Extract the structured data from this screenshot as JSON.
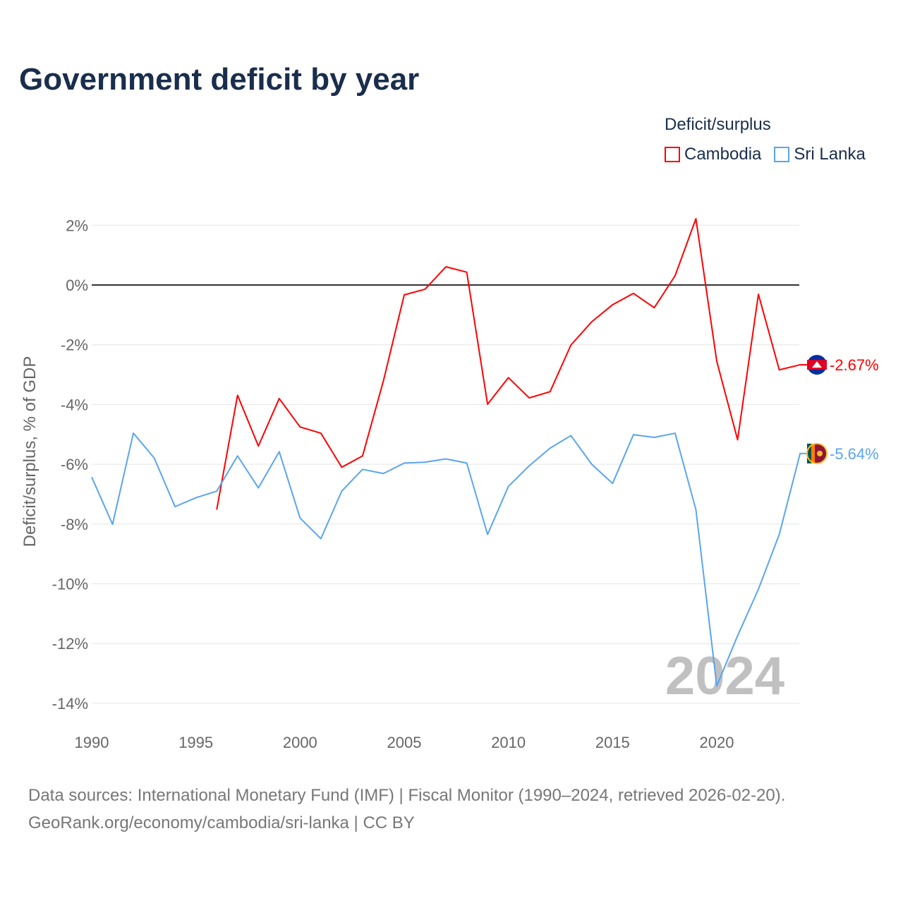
{
  "title": "Government deficit by year",
  "legend": {
    "title": "Deficit/surplus",
    "items": [
      {
        "label": "Cambodia",
        "color": "#ff0000"
      },
      {
        "label": "Sri Lanka",
        "color": "#5aa5ef"
      }
    ]
  },
  "source": {
    "line1": "Data sources: International Monetary Fund (IMF) | Fiscal Monitor (1990–2024, retrieved 2026-02-20).",
    "line2": "GeoRank.org/economy/cambodia/sri-lanka | CC BY"
  },
  "chart_data": {
    "type": "line",
    "title": "Government deficit by year",
    "xlabel": "",
    "ylabel": "Deficit/surplus, % of GDP",
    "xlim": [
      1990,
      2024
    ],
    "ylim": [
      -14,
      2
    ],
    "x_ticks": [
      {
        "v": 1990,
        "label": "1990"
      },
      {
        "v": 1995,
        "label": "1995"
      },
      {
        "v": 2000,
        "label": "2000"
      },
      {
        "v": 2005,
        "label": "2005"
      },
      {
        "v": 2010,
        "label": "2010"
      },
      {
        "v": 2015,
        "label": "2015"
      },
      {
        "v": 2020,
        "label": "2020"
      }
    ],
    "y_ticks": [
      {
        "v": 2,
        "label": "2%"
      },
      {
        "v": 0,
        "label": "0%"
      },
      {
        "v": -2,
        "label": "-2%"
      },
      {
        "v": -4,
        "label": "-4%"
      },
      {
        "v": -6,
        "label": "-6%"
      },
      {
        "v": -8,
        "label": "-8%"
      },
      {
        "v": -10,
        "label": "-10%"
      },
      {
        "v": -12,
        "label": "-12%"
      },
      {
        "v": -14,
        "label": "-14%"
      }
    ],
    "year_watermark": "2024",
    "series": [
      {
        "name": "Cambodia",
        "color": "#ff0000",
        "end_label": "-2.67%",
        "x_start": 1996,
        "values": [
          -7.52,
          -3.69,
          -5.39,
          -3.8,
          -4.75,
          -4.96,
          -6.1,
          -5.72,
          -3.21,
          -0.33,
          -0.14,
          0.61,
          0.43,
          -3.99,
          -3.1,
          -3.78,
          -3.57,
          -2.01,
          -1.23,
          -0.66,
          -0.28,
          -0.76,
          0.31,
          2.22,
          -2.55,
          -5.18,
          -0.31,
          -2.84,
          -2.67
        ]
      },
      {
        "name": "Sri Lanka",
        "color": "#5aa5ef",
        "end_label": "-5.64%",
        "x_start": 1990,
        "values": [
          -6.43,
          -8.01,
          -4.96,
          -5.79,
          -7.42,
          -7.12,
          -6.9,
          -5.72,
          -6.79,
          -5.58,
          -7.8,
          -8.49,
          -6.9,
          -6.17,
          -6.31,
          -5.96,
          -5.93,
          -5.82,
          -5.96,
          -8.35,
          -6.74,
          -6.05,
          -5.46,
          -5.04,
          -6.0,
          -6.64,
          -5.01,
          -5.1,
          -4.96,
          -7.52,
          -13.42,
          -11.74,
          -10.18,
          -8.35,
          -5.64
        ]
      }
    ]
  }
}
